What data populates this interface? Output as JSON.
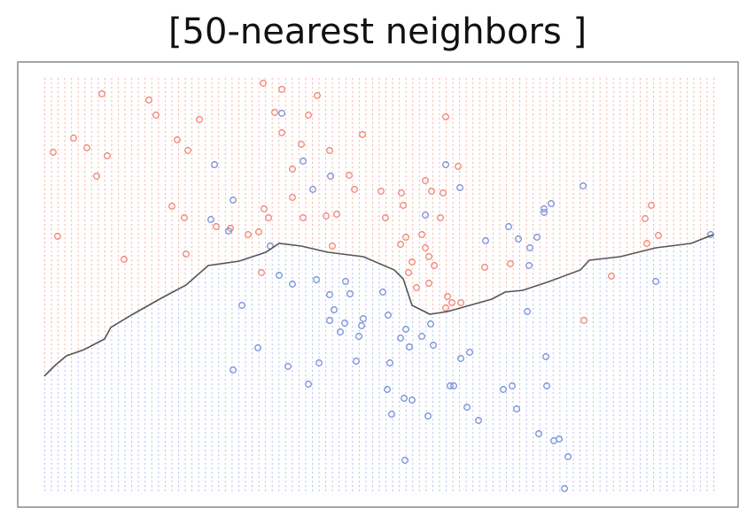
{
  "chart_data": {
    "type": "scatter",
    "title": "[50-nearest neighbors ]",
    "xlim": [
      0,
      755
    ],
    "ylim": [
      0,
      465
    ],
    "series": [
      {
        "color": "#f08575",
        "x": [
          65,
          247,
          268,
          118,
          308,
          126,
          175,
          298,
          10,
          33,
          48,
          71,
          59,
          150,
          162,
          260,
          268,
          290,
          322,
          359,
          453,
          467,
          344,
          350,
          380,
          403,
          405,
          430,
          437,
          450,
          447,
          426,
          144,
          158,
          15,
          90,
          160,
          210,
          230,
          242,
          248,
          253,
          280,
          292,
          318,
          330,
          385,
          402,
          408,
          430,
          434,
          440,
          415,
          411,
          420,
          434,
          455,
          453,
          460,
          470,
          497,
          526,
          678,
          685,
          680,
          693,
          640,
          609,
          245,
          194,
          280,
          325
        ],
        "y": [
          447,
          459,
          452,
          440,
          445,
          423,
          418,
          423,
          381,
          397,
          386,
          377,
          354,
          395,
          383,
          426,
          403,
          390,
          383,
          401,
          421,
          365,
          355,
          339,
          337,
          335,
          321,
          349,
          337,
          335,
          307,
          288,
          320,
          307,
          286,
          260,
          266,
          295,
          288,
          291,
          317,
          307,
          330,
          307,
          309,
          311,
          307,
          277,
          285,
          273,
          263,
          253,
          257,
          245,
          228,
          233,
          218,
          205,
          211,
          211,
          251,
          255,
          306,
          321,
          278,
          287,
          241,
          191,
          245,
          297,
          362,
          275
        ]
      },
      {
        "color": "#7790dc",
        "x": [
          268,
          192,
          292,
          323,
          303,
          213,
          188,
          208,
          255,
          265,
          280,
          307,
          322,
          340,
          345,
          327,
          339,
          322,
          360,
          358,
          355,
          334,
          382,
          388,
          408,
          426,
          439,
          412,
          402,
          223,
          241,
          213,
          275,
          298,
          310,
          352,
          390,
          387,
          392,
          406,
          415,
          433,
          458,
          462,
          470,
          480,
          477,
          490,
          518,
          528,
          533,
          566,
          567,
          558,
          575,
          581,
          591,
          587,
          407,
          535,
          548,
          556,
          572,
          564,
          524,
          498,
          547,
          564,
          608,
          469,
          430,
          453,
          545,
          690,
          752,
          436
        ],
        "y": [
          425,
          367,
          371,
          354,
          339,
          327,
          305,
          292,
          275,
          242,
          232,
          237,
          220,
          235,
          221,
          203,
          188,
          191,
          193,
          185,
          173,
          178,
          223,
          197,
          181,
          173,
          163,
          161,
          171,
          208,
          160,
          135,
          139,
          119,
          143,
          145,
          143,
          113,
          85,
          103,
          101,
          83,
          117,
          117,
          148,
          155,
          93,
          78,
          113,
          117,
          91,
          150,
          117,
          63,
          55,
          57,
          37,
          1,
          33,
          283,
          273,
          285,
          323,
          313,
          297,
          281,
          253,
          317,
          343,
          341,
          310,
          367,
          201,
          235,
          288,
          187
        ]
      },
      {
        "color": "#555555",
        "mode": "line",
        "x": [
          0,
          12,
          25,
          45,
          68,
          75,
          100,
          130,
          160,
          185,
          220,
          250,
          265,
          290,
          320,
          360,
          395,
          405,
          415,
          435,
          455,
          480,
          505,
          520,
          540,
          570,
          605,
          615,
          650,
          690,
          730,
          755
        ],
        "y": [
          128,
          140,
          151,
          158,
          170,
          183,
          198,
          215,
          231,
          253,
          258,
          268,
          278,
          275,
          268,
          263,
          248,
          238,
          208,
          198,
          201,
          208,
          215,
          223,
          225,
          235,
          248,
          259,
          263,
          273,
          278,
          288
        ]
      }
    ]
  }
}
